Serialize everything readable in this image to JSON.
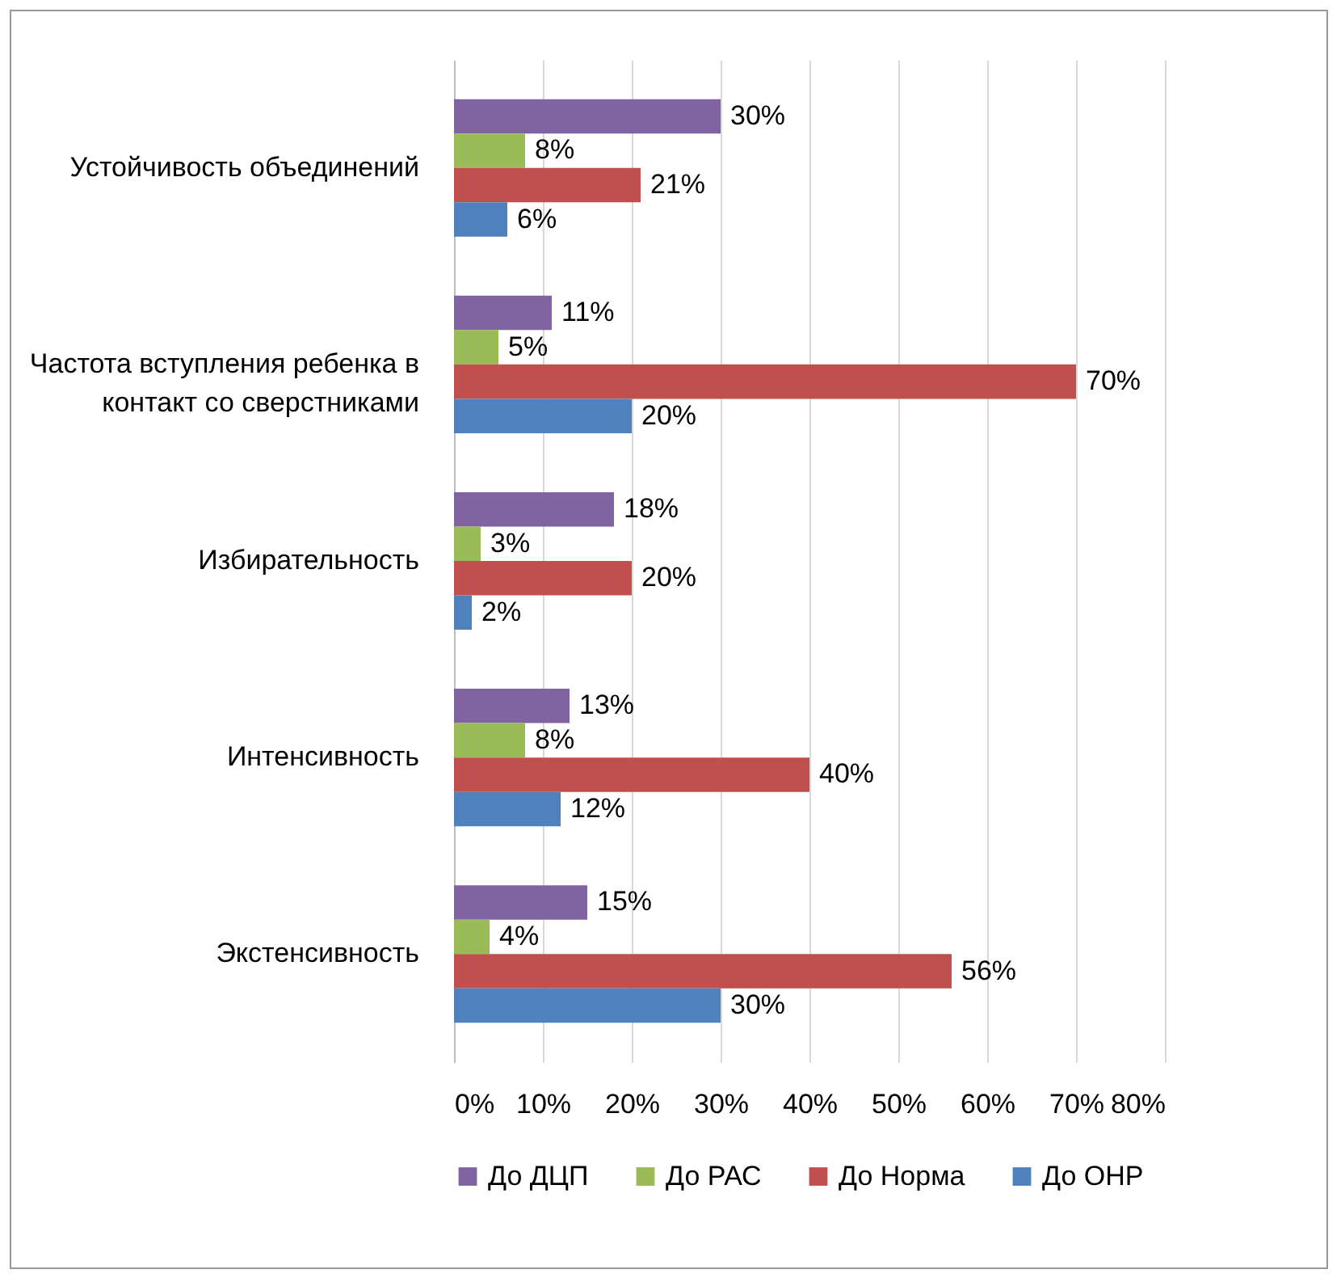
{
  "chart_data": {
    "type": "bar",
    "orientation": "horizontal",
    "categories": [
      "Устойчивость объединений",
      "Частота вступления ребенка в контакт со сверстниками",
      "Избирательность",
      "Интенсивность",
      "Экстенсивность"
    ],
    "series": [
      {
        "name": "До ДЦП",
        "color": "#8064a2",
        "values": [
          30,
          11,
          18,
          13,
          15
        ],
        "value_labels": [
          "30%",
          "11%",
          "18%",
          "13%",
          "15%"
        ]
      },
      {
        "name": "До РАС",
        "color": "#9bbb59",
        "values": [
          8,
          5,
          3,
          8,
          4
        ],
        "value_labels": [
          "8%",
          "5%",
          "3%",
          "8%",
          "4%"
        ]
      },
      {
        "name": "До Норма",
        "color": "#c0504d",
        "values": [
          21,
          70,
          20,
          40,
          56
        ],
        "value_labels": [
          "21%",
          "70%",
          "20%",
          "40%",
          "56%"
        ]
      },
      {
        "name": "До ОНР",
        "color": "#4f81bd",
        "values": [
          6,
          20,
          2,
          12,
          30
        ],
        "value_labels": [
          "6%",
          "20%",
          "2%",
          "12%",
          "30%"
        ]
      }
    ],
    "xlim": [
      0,
      80
    ],
    "xticks": [
      {
        "value": 0,
        "label": "0%"
      },
      {
        "value": 10,
        "label": "10%"
      },
      {
        "value": 20,
        "label": "20%"
      },
      {
        "value": 30,
        "label": "30%"
      },
      {
        "value": 40,
        "label": "40%"
      },
      {
        "value": 50,
        "label": "50%"
      },
      {
        "value": 60,
        "label": "60%"
      },
      {
        "value": 70,
        "label": "70%"
      },
      {
        "value": 80,
        "label": "80%"
      }
    ],
    "grid": "x",
    "legend": "bottom"
  }
}
